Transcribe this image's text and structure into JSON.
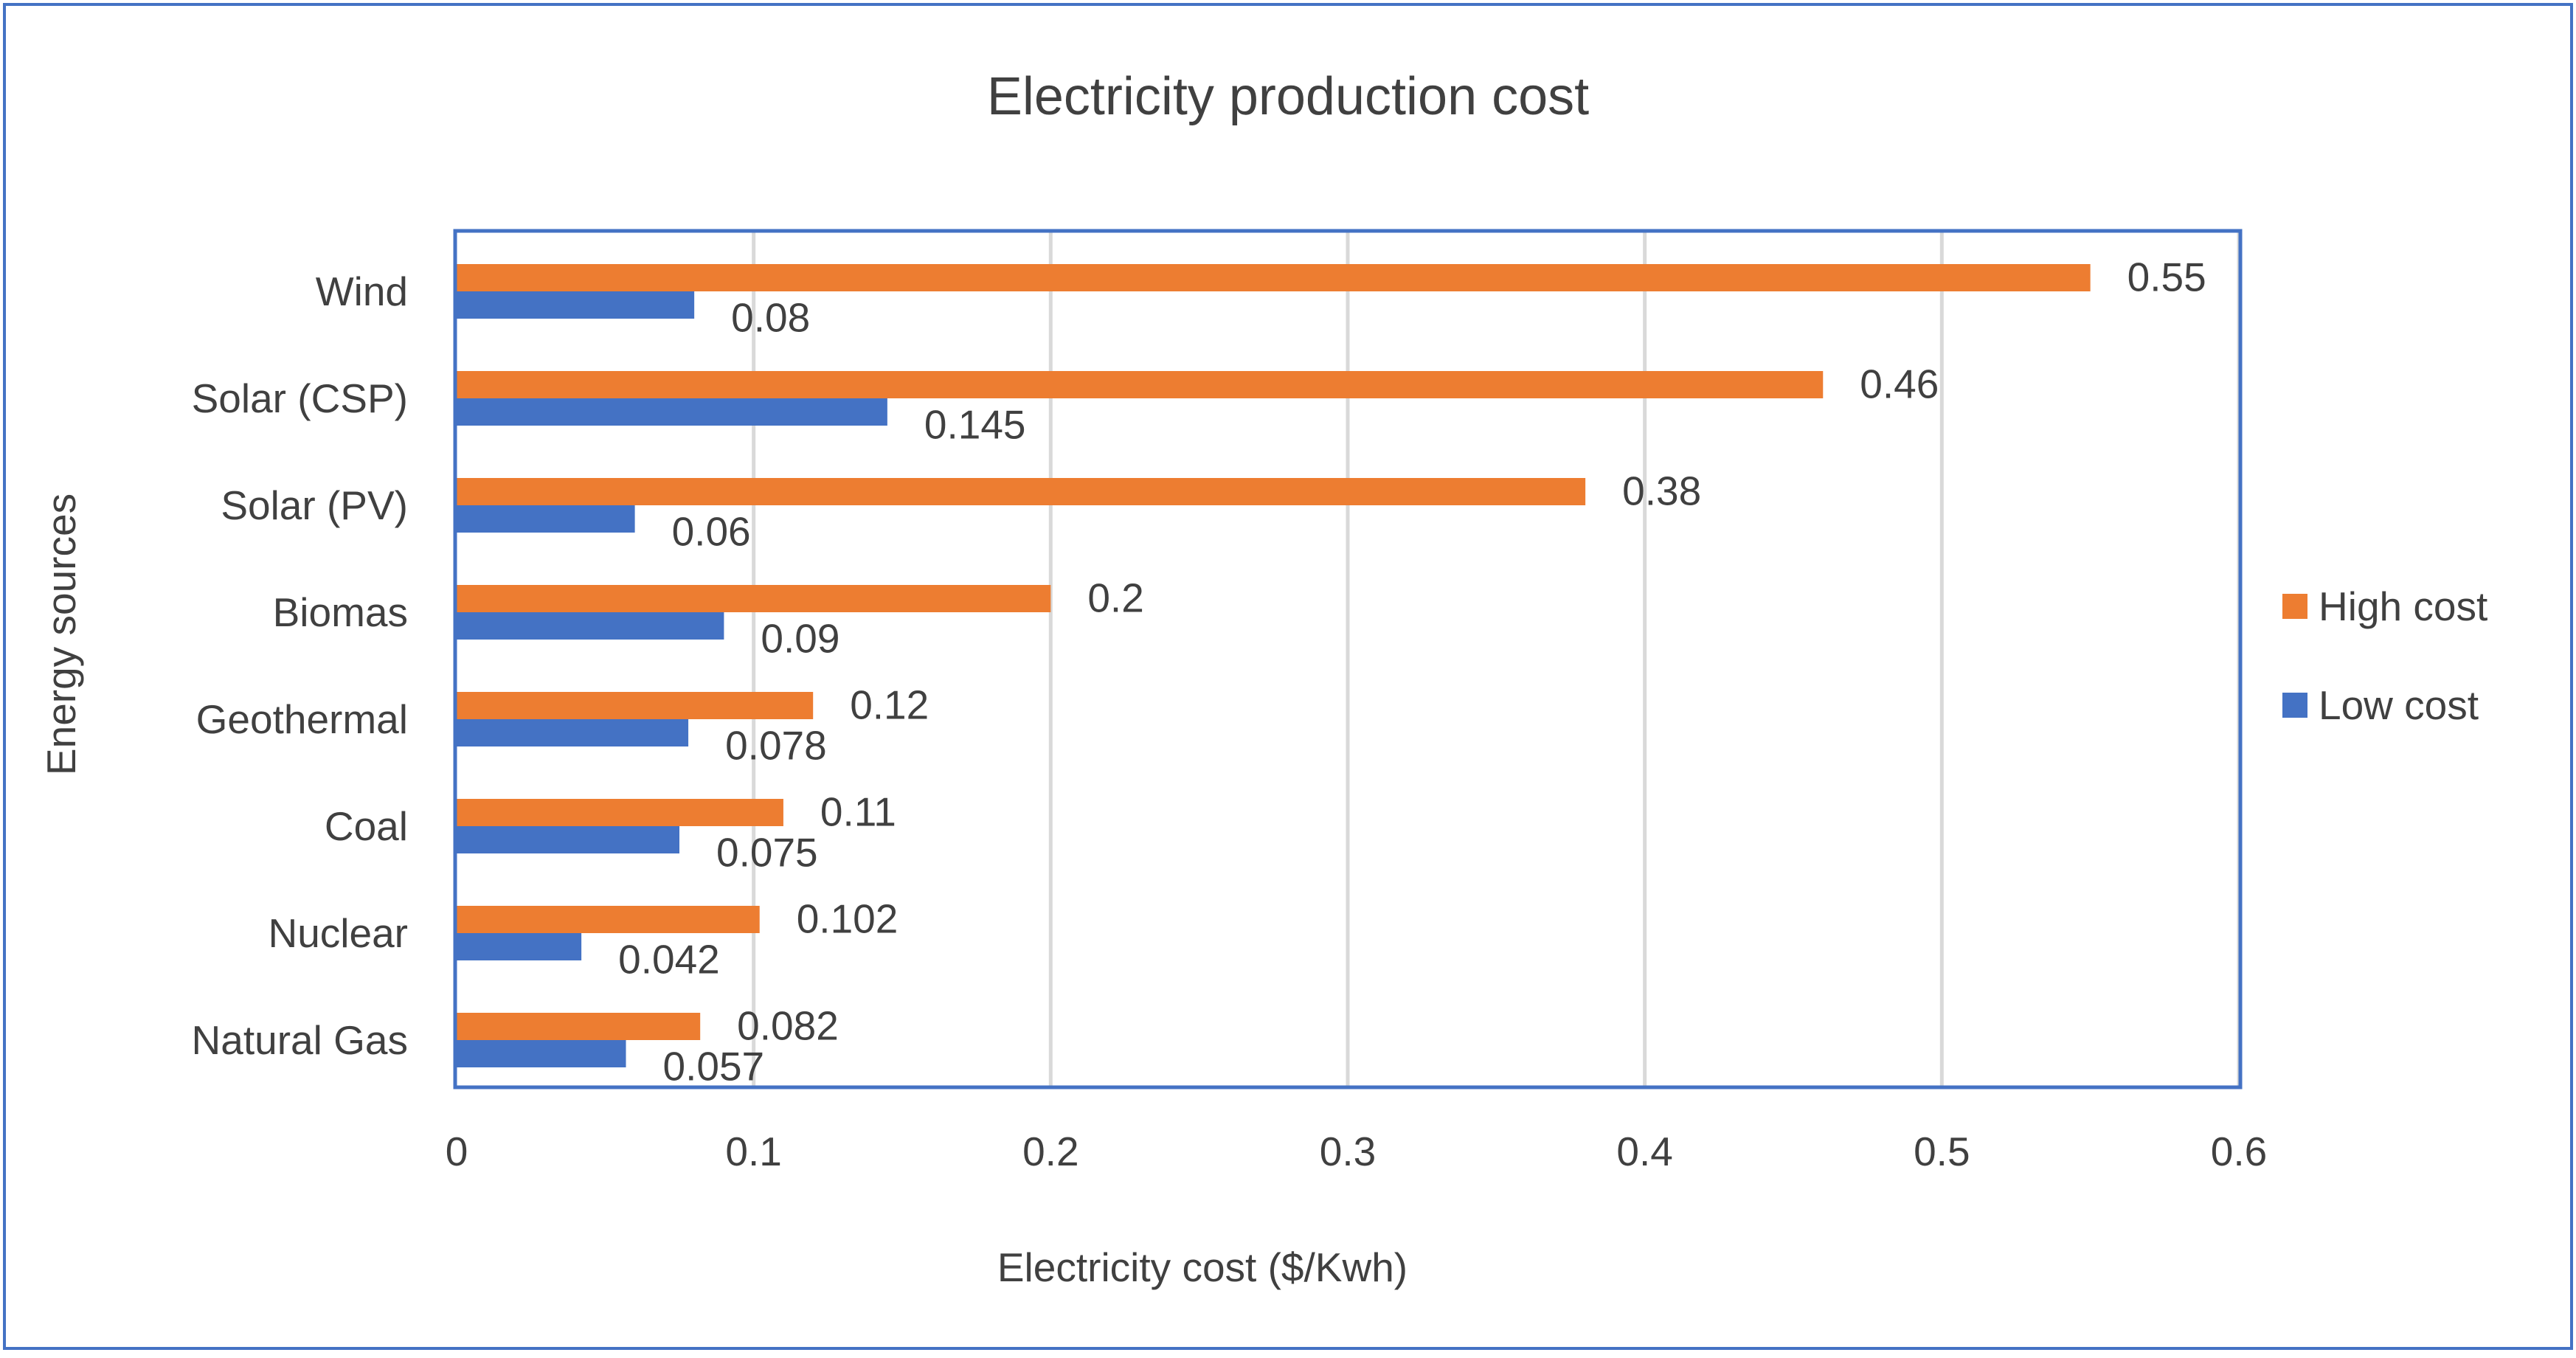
{
  "chart_data": {
    "type": "bar",
    "orientation": "horizontal",
    "title": "Electricity production cost",
    "xlabel": "Electricity cost  ($/Kwh)",
    "ylabel": "Energy sources",
    "xlim": [
      0,
      0.6
    ],
    "x_ticks": [
      0,
      0.1,
      0.2,
      0.3,
      0.4,
      0.5,
      0.6
    ],
    "x_tick_labels": [
      "0",
      "0.1",
      "0.2",
      "0.3",
      "0.4",
      "0.5",
      "0.6"
    ],
    "grid": "vertical",
    "legend_position": "right",
    "categories": [
      "Wind",
      "Solar (CSP)",
      "Solar (PV)",
      "Biomas",
      "Geothermal",
      "Coal",
      "Nuclear",
      "Natural Gas"
    ],
    "series": [
      {
        "name": "High cost",
        "color": "#ED7D31",
        "values": [
          0.55,
          0.46,
          0.38,
          0.2,
          0.12,
          0.11,
          0.102,
          0.082
        ],
        "labels": [
          "0.55",
          "0.46",
          "0.38",
          "0.2",
          "0.12",
          "0.11",
          "0.102",
          "0.082"
        ]
      },
      {
        "name": "Low cost",
        "color": "#4472C4",
        "values": [
          0.08,
          0.145,
          0.06,
          0.09,
          0.078,
          0.075,
          0.042,
          0.057
        ],
        "labels": [
          "0.08",
          "0.145",
          "0.06",
          "0.09",
          "0.078",
          "0.075",
          "0.042",
          "0.057"
        ]
      }
    ],
    "colors": {
      "frame_border": "#4472C4",
      "plot_border": "#4472C4",
      "gridline": "#D9D9D9",
      "text": "#404040"
    }
  }
}
